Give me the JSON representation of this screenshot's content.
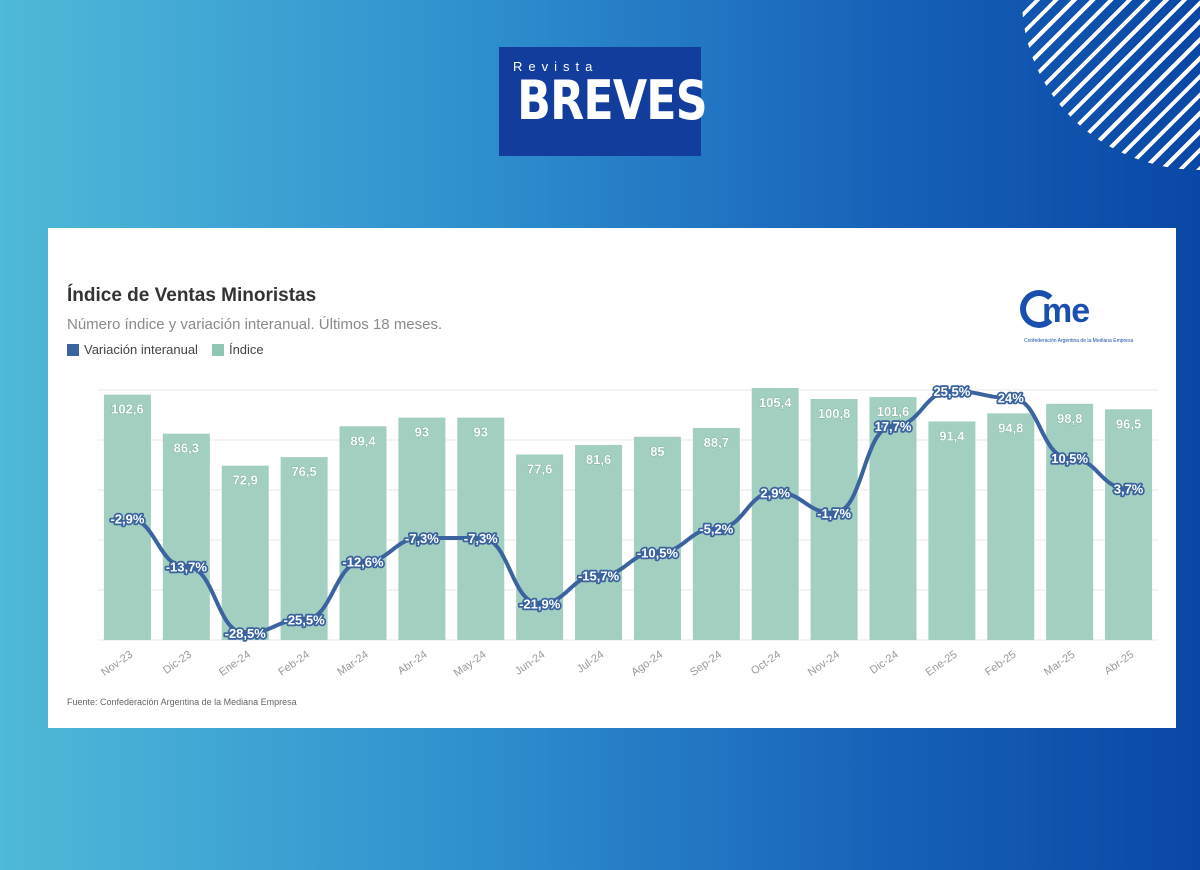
{
  "logo": {
    "subtitle": "Revista",
    "name": "BREVES",
    "bg_color": "#133d9c"
  },
  "came": {
    "word": "me",
    "tagline": "Confederación Argentina de la Mediana Empresa",
    "color": "#1a4fb0"
  },
  "colors": {
    "bars": "#a3cfc0",
    "bar_label": "#ffffff",
    "line": "#3b63a0",
    "bg_left": "#4fb9d8",
    "bg_right": "#0a47a6"
  },
  "source": "Fuente: Confederación Argentina de la Mediana Empresa",
  "chart_data": {
    "type": "bar",
    "title": "Índice de Ventas Minoristas",
    "subtitle": "Número índice y variación interanual. Últimos 18 meses.",
    "legend": {
      "position": "top-left"
    },
    "grid": true,
    "categories": [
      "Nov-23",
      "Dic-23",
      "Ene-24",
      "Feb-24",
      "Mar-24",
      "Abr-24",
      "May-24",
      "Jun-24",
      "Jul-24",
      "Ago-24",
      "Sep-24",
      "Oct-24",
      "Nov-24",
      "Dic-24",
      "Ene-25",
      "Feb-25",
      "Mar-25",
      "Abr-25"
    ],
    "series": [
      {
        "name": "Índice",
        "type": "bar",
        "values": [
          102.6,
          86.3,
          72.9,
          76.5,
          89.4,
          93,
          93,
          77.6,
          81.6,
          85,
          88.7,
          105.4,
          100.8,
          101.6,
          91.4,
          94.8,
          98.8,
          96.5
        ],
        "labels": [
          "102,6",
          "86,3",
          "72,9",
          "76,5",
          "89,4",
          "93",
          "93",
          "77,6",
          "81,6",
          "85",
          "88,7",
          "105,4",
          "100,8",
          "101,6",
          "91,4",
          "94,8",
          "98,8",
          "96,5"
        ]
      },
      {
        "name": "Variación interanual",
        "type": "line",
        "values": [
          -2.9,
          -13.7,
          -28.5,
          -25.5,
          -12.6,
          -7.3,
          -7.3,
          -21.9,
          -15.7,
          -10.5,
          -5.2,
          2.9,
          -1.7,
          17.7,
          25.5,
          24,
          10.5,
          3.7
        ],
        "labels": [
          "-2,9%",
          "-13,7%",
          "-28,5%",
          "-25,5%",
          "-12,6%",
          "-7,3%",
          "-7,3%",
          "-21,9%",
          "-15,7%",
          "-10,5%",
          "-5,2%",
          "2,9%",
          "-1,7%",
          "17,7%",
          "25,5%",
          "24%",
          "10,5%",
          "3,7%"
        ]
      }
    ],
    "index_axis_range": [
      0,
      105.4
    ],
    "variation_axis_range": [
      -28.5,
      25.5
    ]
  }
}
